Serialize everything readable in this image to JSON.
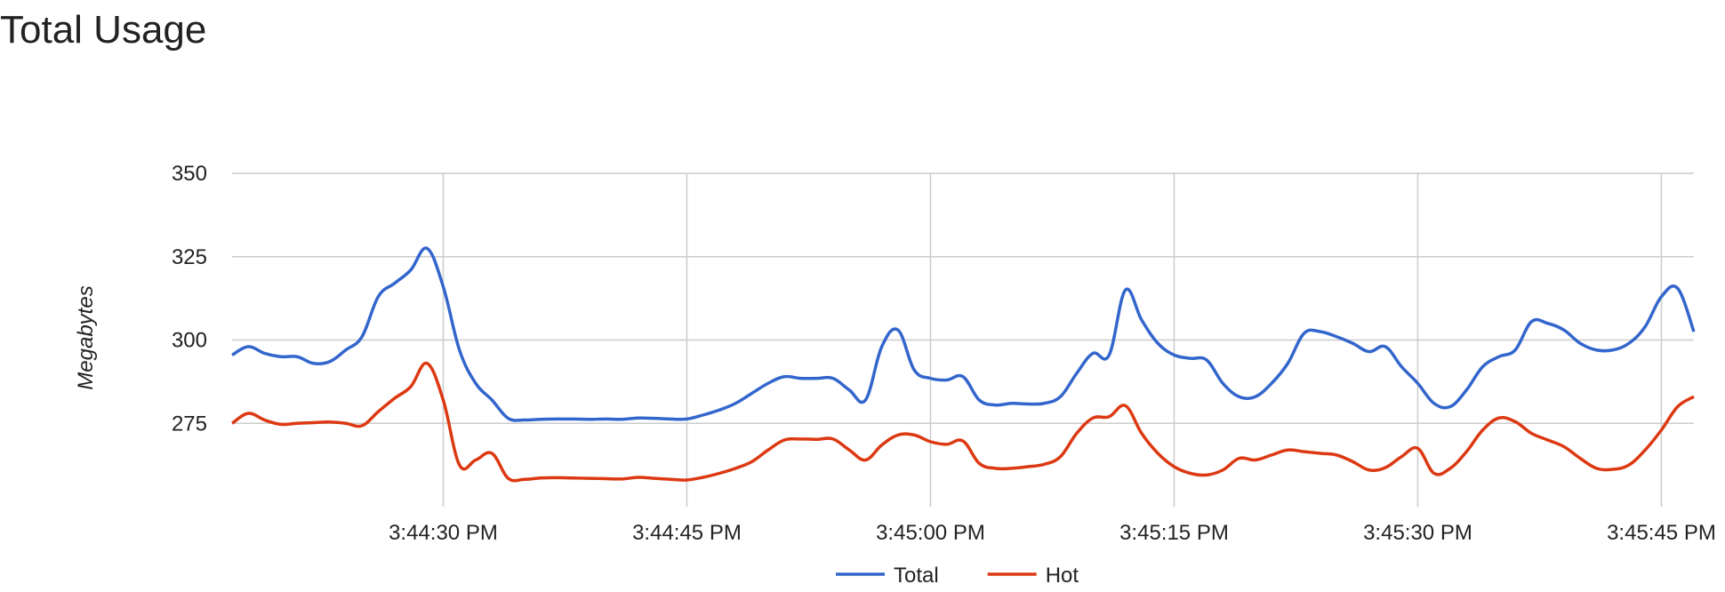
{
  "chart_data": {
    "type": "line",
    "title": "Total Usage",
    "y_label": "Megabytes",
    "x": [
      "3:44:17 PM",
      "3:44:18 PM",
      "3:44:19 PM",
      "3:44:20 PM",
      "3:44:21 PM",
      "3:44:22 PM",
      "3:44:23 PM",
      "3:44:24 PM",
      "3:44:25 PM",
      "3:44:26 PM",
      "3:44:27 PM",
      "3:44:28 PM",
      "3:44:29 PM",
      "3:44:30 PM",
      "3:44:31 PM",
      "3:44:32 PM",
      "3:44:33 PM",
      "3:44:34 PM",
      "3:44:35 PM",
      "3:44:36 PM",
      "3:44:37 PM",
      "3:44:38 PM",
      "3:44:39 PM",
      "3:44:40 PM",
      "3:44:41 PM",
      "3:44:42 PM",
      "3:44:43 PM",
      "3:44:44 PM",
      "3:44:45 PM",
      "3:44:46 PM",
      "3:44:47 PM",
      "3:44:48 PM",
      "3:44:49 PM",
      "3:44:50 PM",
      "3:44:51 PM",
      "3:44:52 PM",
      "3:44:53 PM",
      "3:44:54 PM",
      "3:44:55 PM",
      "3:44:56 PM",
      "3:44:57 PM",
      "3:44:58 PM",
      "3:44:59 PM",
      "3:45:00 PM",
      "3:45:01 PM",
      "3:45:02 PM",
      "3:45:03 PM",
      "3:45:04 PM",
      "3:45:05 PM",
      "3:45:06 PM",
      "3:45:07 PM",
      "3:45:08 PM",
      "3:45:09 PM",
      "3:45:10 PM",
      "3:45:11 PM",
      "3:45:12 PM",
      "3:45:13 PM",
      "3:45:14 PM",
      "3:45:15 PM",
      "3:45:16 PM",
      "3:45:17 PM",
      "3:45:18 PM",
      "3:45:19 PM",
      "3:45:20 PM",
      "3:45:21 PM",
      "3:45:22 PM",
      "3:45:23 PM",
      "3:45:24 PM",
      "3:45:25 PM",
      "3:45:26 PM",
      "3:45:27 PM",
      "3:45:28 PM",
      "3:45:29 PM",
      "3:45:30 PM",
      "3:45:31 PM",
      "3:45:32 PM",
      "3:45:33 PM",
      "3:45:34 PM",
      "3:45:35 PM",
      "3:45:36 PM",
      "3:45:37 PM",
      "3:45:38 PM",
      "3:45:39 PM",
      "3:45:40 PM",
      "3:45:41 PM",
      "3:45:42 PM",
      "3:45:43 PM",
      "3:45:44 PM",
      "3:45:45 PM",
      "3:45:46 PM",
      "3:45:47 PM"
    ],
    "series": [
      {
        "name": "Total",
        "color": "#3366cc",
        "values": [
          295.5,
          298,
          296,
          295,
          295,
          293,
          293.5,
          297,
          301,
          313,
          317,
          321,
          327.5,
          316,
          297,
          287,
          282,
          276.5,
          276,
          276.2,
          276.3,
          276.3,
          276.2,
          276.3,
          276.2,
          276.6,
          276.5,
          276.3,
          276.3,
          277.5,
          279,
          281,
          284,
          287,
          289,
          288.5,
          288.5,
          288.5,
          285,
          282,
          298,
          303,
          291,
          288.5,
          288,
          289,
          282,
          280.5,
          281,
          280.8,
          281,
          283,
          290,
          296,
          295.5,
          315,
          306,
          299,
          295.5,
          294.5,
          294,
          287,
          283,
          283,
          287,
          293,
          302,
          302.5,
          301,
          299,
          296.5,
          298,
          292,
          287,
          281,
          280,
          285,
          292,
          295,
          297,
          305.5,
          305,
          303,
          299,
          297,
          297,
          299,
          304,
          313,
          315.5,
          302.5
        ]
      },
      {
        "name": "Hot",
        "color": "#dc3912",
        "values": [
          275,
          278,
          276,
          274.7,
          275,
          275.2,
          275.4,
          275,
          274.3,
          278.5,
          282.5,
          286,
          293,
          282,
          262.5,
          264,
          266,
          258.5,
          258.2,
          258.6,
          258.7,
          258.6,
          258.5,
          258.4,
          258.3,
          258.8,
          258.5,
          258.2,
          258,
          258.8,
          260,
          261.5,
          263.5,
          267,
          270,
          270.3,
          270.2,
          270.3,
          267,
          264,
          268.5,
          271.5,
          271.5,
          269.5,
          268.7,
          269.7,
          263,
          261.5,
          261.5,
          262,
          262.7,
          265,
          272,
          276.6,
          277,
          280.3,
          272,
          266,
          262,
          260,
          259.5,
          261,
          264.5,
          264,
          265.5,
          267,
          266.5,
          266,
          265.5,
          263.5,
          261,
          261.7,
          265,
          267.5,
          260,
          261.5,
          266.5,
          273,
          276.6,
          275.5,
          272,
          270,
          268,
          264.5,
          261.5,
          261.2,
          262.5,
          267,
          273,
          280,
          283
        ]
      }
    ],
    "xlim": [
      "3:44:17 PM",
      "3:45:47 PM"
    ],
    "xticks": [
      "3:44:30 PM",
      "3:44:45 PM",
      "3:45:00 PM",
      "3:45:15 PM",
      "3:45:30 PM",
      "3:45:45 PM"
    ],
    "ylim": [
      250,
      350
    ],
    "yticks": [
      275,
      300,
      325,
      350
    ],
    "grid": true,
    "legend": "bottom"
  }
}
